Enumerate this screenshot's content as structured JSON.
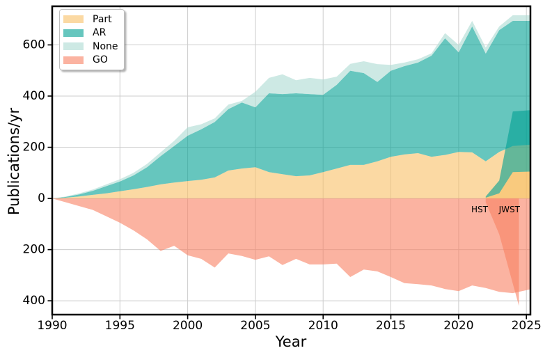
{
  "chart_data": {
    "type": "area",
    "description": "Mirrored stacked area chart: publications per year. Part, AR and None are stacked above the zero line; GO is mirrored below the zero line. The large series spanning 1990-2025 is HST; a second small overlay group starting in 2022 (annotated JWST) is drawn on top with the same transparent colors, producing darker blended wedges.",
    "title": "",
    "xlabel": "Year",
    "ylabel": "Publications/yr",
    "xlim": [
      1990,
      2025.3
    ],
    "ylim": [
      -454,
      751
    ],
    "grid": true,
    "grid_color": "#cccccc",
    "spine_color": "#000000",
    "fill_opacity": 0.6,
    "xticks": [
      {
        "value": 1990,
        "label": "1990"
      },
      {
        "value": 1995,
        "label": "1995"
      },
      {
        "value": 2000,
        "label": "2000"
      },
      {
        "value": 2005,
        "label": "2005"
      },
      {
        "value": 2010,
        "label": "2010"
      },
      {
        "value": 2015,
        "label": "2015"
      },
      {
        "value": 2020,
        "label": "2020"
      },
      {
        "value": 2025,
        "label": "2025"
      }
    ],
    "yticks": [
      {
        "value": 600,
        "label": "600"
      },
      {
        "value": 400,
        "label": "400"
      },
      {
        "value": 200,
        "label": "200"
      },
      {
        "value": 0,
        "label": "0"
      },
      {
        "value": -200,
        "label": "200"
      },
      {
        "value": -400,
        "label": "400"
      }
    ],
    "legend": {
      "position": "upper-left",
      "items": [
        {
          "label": "Part",
          "color": "#F8C066"
        },
        {
          "label": "AR",
          "color": "#00A092"
        },
        {
          "label": "None",
          "color": "#ABDAD2"
        },
        {
          "label": "GO",
          "color": "#F88062"
        }
      ]
    },
    "annotations": [
      {
        "text": "HST",
        "x": 2021.55,
        "y": -54
      },
      {
        "text": "JWST",
        "x": 2023.75,
        "y": -54
      }
    ],
    "groups": [
      {
        "name": "HST",
        "years": [
          1990,
          1991,
          1992,
          1993,
          1994,
          1995,
          1996,
          1997,
          1998,
          1999,
          2000,
          2001,
          2002,
          2003,
          2004,
          2005,
          2006,
          2007,
          2008,
          2009,
          2010,
          2011,
          2012,
          2013,
          2014,
          2015,
          2016,
          2017,
          2018,
          2019,
          2020,
          2021,
          2022,
          2023,
          2024,
          2025.3
        ],
        "stack_above": [
          {
            "name": "Part",
            "color": "#F8C066",
            "values": [
              0,
              3,
              8,
              14,
              20,
              28,
              36,
              45,
              55,
              62,
              68,
              73,
              82,
              109,
              117,
              122,
              103,
              95,
              87,
              90,
              103,
              117,
              131,
              131,
              145,
              163,
              172,
              177,
              163,
              170,
              182,
              180,
              145,
              182,
              205,
              210
            ]
          },
          {
            "name": "AR",
            "color": "#00A092",
            "values": [
              0,
              3,
              8,
              16,
              28,
              38,
              54,
              77,
              110,
              143,
              177,
              197,
              217,
              240,
              258,
              234,
              308,
              313,
              324,
              318,
              302,
              327,
              368,
              359,
              310,
              336,
              345,
              354,
              395,
              456,
              389,
              492,
              421,
              476,
              489,
              484
            ]
          },
          {
            "name": "None",
            "color": "#ABDAD2",
            "values": [
              0,
              2,
              4,
              5,
              7,
              9,
              10,
              13,
              15,
              20,
              33,
              20,
              14,
              18,
              6,
              61,
              60,
              77,
              51,
              63,
              60,
              32,
              27,
              46,
              70,
              23,
              14,
              13,
              9,
              20,
              29,
              22,
              24,
              14,
              22,
              22
            ]
          }
        ],
        "mirror_below": {
          "name": "GO",
          "color": "#F88062",
          "values": [
            0,
            -15,
            -30,
            -45,
            -70,
            -95,
            -125,
            -160,
            -205,
            -185,
            -222,
            -236,
            -270,
            -215,
            -225,
            -240,
            -226,
            -260,
            -236,
            -258,
            -258,
            -255,
            -307,
            -278,
            -285,
            -307,
            -331,
            -335,
            -340,
            -354,
            -362,
            -340,
            -350,
            -365,
            -370,
            -355
          ]
        }
      },
      {
        "name": "JWST",
        "years": [
          2022,
          2023,
          2024,
          2025.3
        ],
        "stack_above": [
          {
            "name": "Part",
            "color": "#F8C066",
            "values": [
              3,
              20,
              103,
              105
            ]
          },
          {
            "name": "AR",
            "color": "#00A092",
            "values": [
              5,
              50,
              237,
              240
            ]
          }
        ],
        "mirror_below": {
          "name": "GO",
          "color": "#F88062",
          "years": [
            2022,
            2023,
            2024.45
          ],
          "values": [
            -15,
            -140,
            -420
          ]
        }
      }
    ]
  }
}
